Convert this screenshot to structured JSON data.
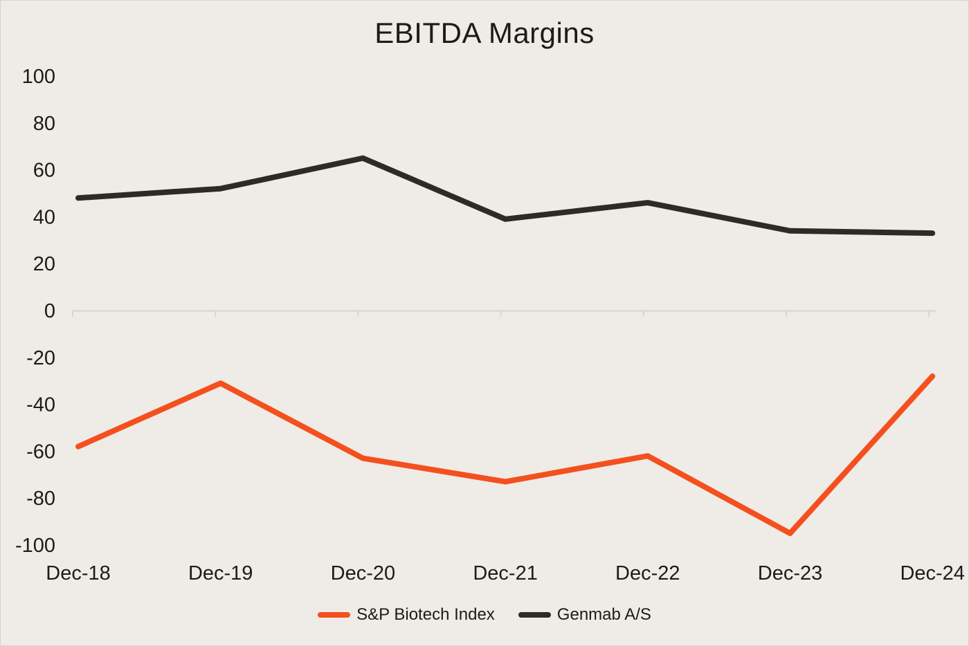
{
  "page": {
    "background_color": "#EFEBE7",
    "text_color": "#1C1B19",
    "axis_color": "#D8D5D0"
  },
  "chart_data": {
    "type": "line",
    "title": "EBITDA Margins",
    "categories": [
      "Dec-18",
      "Dec-19",
      "Dec-20",
      "Dec-21",
      "Dec-22",
      "Dec-23",
      "Dec-24"
    ],
    "series": [
      {
        "name": "S&P Biotech Index",
        "color": "#F4501E",
        "values": [
          -58,
          -31,
          -63,
          -73,
          -62,
          -95,
          -28
        ]
      },
      {
        "name": "Genmab A/S",
        "color": "#2D2B28",
        "values": [
          48,
          52,
          65,
          39,
          46,
          34,
          33
        ]
      }
    ],
    "ylim": [
      -100,
      100
    ],
    "ytick_interval": 20,
    "grid": "zero-axis-only",
    "legend_position": "bottom",
    "xlabel": "",
    "ylabel": ""
  }
}
